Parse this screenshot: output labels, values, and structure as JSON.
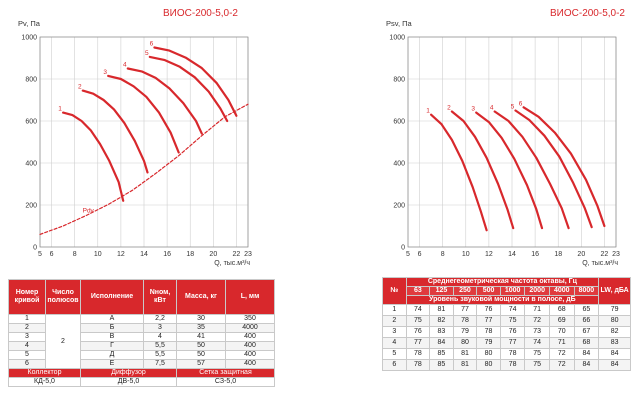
{
  "left_table": {
    "headers": [
      "Номер кривой",
      "Число полюсов",
      "Исполнение",
      "Nном, кВт",
      "Масса, кг",
      "L, мм"
    ],
    "poles": "2",
    "rows": [
      [
        "1",
        "А",
        "2,2",
        "30",
        "350"
      ],
      [
        "2",
        "Б",
        "3",
        "35",
        "4000"
      ],
      [
        "3",
        "В",
        "4",
        "41",
        "400"
      ],
      [
        "4",
        "Г",
        "5,5",
        "50",
        "400"
      ],
      [
        "5",
        "Д",
        "5,5",
        "50",
        "400"
      ],
      [
        "6",
        "Е",
        "7,5",
        "57",
        "400"
      ]
    ],
    "accessory_labels": [
      "Коллектор",
      "Диффузор",
      "Сетка защитная"
    ],
    "accessory_values": [
      "КД-5,0",
      "ДВ-5,0",
      "СЗ-5,0"
    ]
  },
  "right_table": {
    "col_no": "№",
    "band_title": "Среднегеометрическая частота октавы, Гц",
    "frequencies": [
      "63",
      "125",
      "250",
      "500",
      "1000",
      "2000",
      "4000",
      "8000"
    ],
    "col_lw": "LW, дБА",
    "subtitle": "Уровень звуковой мощности в полосе, дБ",
    "rows": [
      [
        "1",
        "74",
        "81",
        "77",
        "76",
        "74",
        "71",
        "68",
        "65",
        "79"
      ],
      [
        "2",
        "75",
        "82",
        "78",
        "77",
        "75",
        "72",
        "69",
        "66",
        "80"
      ],
      [
        "3",
        "76",
        "83",
        "79",
        "78",
        "76",
        "73",
        "70",
        "67",
        "82"
      ],
      [
        "4",
        "77",
        "84",
        "80",
        "79",
        "77",
        "74",
        "71",
        "68",
        "83"
      ],
      [
        "5",
        "78",
        "85",
        "81",
        "80",
        "78",
        "75",
        "72",
        "84",
        "84"
      ],
      [
        "6",
        "78",
        "85",
        "81",
        "80",
        "78",
        "75",
        "72",
        "84",
        "84"
      ]
    ]
  },
  "chart_data": [
    {
      "type": "line",
      "title": "ВИОС-200-5,0-2",
      "ylabel": "Pv, Па",
      "xlabel": "Q, тыс.м³/ч",
      "xlim": [
        5,
        23
      ],
      "ylim": [
        0,
        1000
      ],
      "x_ticks": [
        5,
        6,
        8,
        10,
        12,
        14,
        16,
        18,
        20,
        22,
        23
      ],
      "y_ticks": [
        0,
        200,
        400,
        600,
        800,
        1000
      ],
      "grid": true,
      "line_color": "#d8282c",
      "series": [
        {
          "name": "1",
          "x": [
            7.0,
            7.8,
            8.6,
            9.4,
            10.2,
            11.0,
            11.8,
            12.2
          ],
          "y": [
            640,
            628,
            600,
            555,
            490,
            410,
            310,
            220
          ]
        },
        {
          "name": "2",
          "x": [
            8.7,
            9.6,
            10.5,
            11.4,
            12.3,
            13.2,
            14.0,
            14.3
          ],
          "y": [
            745,
            730,
            700,
            655,
            590,
            505,
            410,
            355
          ]
        },
        {
          "name": "3",
          "x": [
            10.9,
            12.0,
            13.1,
            14.2,
            15.3,
            16.3,
            17.0
          ],
          "y": [
            815,
            800,
            765,
            715,
            640,
            545,
            450
          ]
        },
        {
          "name": "4",
          "x": [
            12.6,
            13.8,
            15.0,
            16.2,
            17.4,
            18.5,
            19.0
          ],
          "y": [
            850,
            836,
            805,
            755,
            685,
            600,
            540
          ]
        },
        {
          "name": "5",
          "x": [
            14.5,
            15.8,
            17.1,
            18.4,
            19.6,
            20.6,
            21.2
          ],
          "y": [
            905,
            890,
            858,
            808,
            740,
            660,
            600
          ]
        },
        {
          "name": "6",
          "x": [
            14.9,
            16.2,
            17.6,
            19.0,
            20.3,
            21.3,
            22.0
          ],
          "y": [
            950,
            935,
            902,
            852,
            780,
            700,
            625
          ]
        },
        {
          "name": "Pdv",
          "dashed": true,
          "x": [
            5,
            7,
            9,
            11,
            13,
            15,
            17,
            19,
            21,
            23
          ],
          "y": [
            60,
            100,
            150,
            205,
            270,
            350,
            435,
            530,
            620,
            680
          ]
        }
      ]
    },
    {
      "type": "line",
      "title": "ВИОС-200-5,0-2",
      "ylabel": "Psv, Па",
      "xlabel": "Q, тыс.м³/ч",
      "xlim": [
        5,
        23
      ],
      "ylim": [
        0,
        1000
      ],
      "x_ticks": [
        5,
        6,
        8,
        10,
        12,
        14,
        16,
        18,
        20,
        22,
        23
      ],
      "y_ticks": [
        0,
        200,
        400,
        600,
        800,
        1000
      ],
      "grid": true,
      "line_color": "#d8282c",
      "series": [
        {
          "name": "1",
          "x": [
            7.0,
            7.9,
            8.8,
            9.7,
            10.6,
            11.3,
            11.8
          ],
          "y": [
            630,
            585,
            510,
            410,
            285,
            170,
            80
          ]
        },
        {
          "name": "2",
          "x": [
            8.8,
            9.8,
            10.8,
            11.8,
            12.8,
            13.6,
            14.1
          ],
          "y": [
            645,
            600,
            525,
            425,
            300,
            180,
            90
          ]
        },
        {
          "name": "3",
          "x": [
            10.9,
            12.0,
            13.1,
            14.2,
            15.3,
            16.1,
            16.6
          ],
          "y": [
            640,
            595,
            520,
            420,
            295,
            180,
            90
          ]
        },
        {
          "name": "4",
          "x": [
            12.5,
            13.7,
            14.9,
            16.1,
            17.3,
            18.3,
            18.9
          ],
          "y": [
            645,
            600,
            525,
            425,
            300,
            185,
            90
          ]
        },
        {
          "name": "5",
          "x": [
            14.3,
            15.5,
            16.8,
            18.1,
            19.3,
            20.3,
            20.9
          ],
          "y": [
            650,
            605,
            530,
            430,
            305,
            185,
            95
          ]
        },
        {
          "name": "6",
          "x": [
            15.0,
            16.3,
            17.7,
            19.1,
            20.4,
            21.4,
            22.0
          ],
          "y": [
            665,
            620,
            545,
            445,
            320,
            195,
            100
          ]
        }
      ]
    }
  ]
}
